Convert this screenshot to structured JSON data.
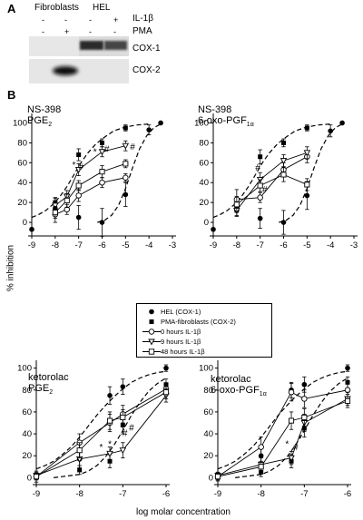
{
  "panel_a": {
    "letter": "A",
    "groups": [
      "Fibroblasts",
      "HEL"
    ],
    "treatments": [
      {
        "name": "IL-1β",
        "signs": [
          "-",
          "-",
          "-",
          "+"
        ]
      },
      {
        "name": "PMA",
        "signs": [
          "-",
          "+",
          "-",
          "-"
        ]
      }
    ],
    "bands": [
      "COX-1",
      "COX-2"
    ]
  },
  "panel_b": {
    "letter": "B",
    "y_axis_label": "% inhibition",
    "x_axis_label": "log molar concentration",
    "legend": [
      {
        "symbol": "filled-circle",
        "label": "HEL (COX-1)"
      },
      {
        "symbol": "filled-square",
        "label": "PMA-fibroblasts (COX-2)"
      },
      {
        "symbol": "open-circle",
        "label": "0 hours IL-1β"
      },
      {
        "symbol": "open-triangle-down",
        "label": "9 hours IL-1β"
      },
      {
        "symbol": "open-square",
        "label": "48 hours IL-1β"
      }
    ]
  },
  "chart_data": [
    {
      "type": "scatter",
      "title_line1": "NS-398",
      "title_line2_main": "PGE",
      "title_line2_sub": "2",
      "xlim": [
        -9,
        -3
      ],
      "ylim": [
        -10,
        105
      ],
      "xticks": [
        "-9",
        "-8",
        "-7",
        "-6",
        "-5",
        "-4",
        "-3"
      ],
      "yticks": [
        "0",
        "20",
        "40",
        "60",
        "80",
        "100"
      ],
      "fit_curves": [
        {
          "series": "HEL (COX-1)",
          "x": [
            -6.2,
            -5.9,
            -5.6,
            -5.3,
            -5.0,
            -4.7,
            -4.4,
            -4.1,
            -3.8,
            -3.5
          ],
          "y": [
            0,
            2,
            7,
            17,
            34,
            55,
            74,
            87,
            95,
            99
          ]
        },
        {
          "series": "PMA-fibroblasts (COX-2)",
          "x": [
            -9,
            -8.7,
            -8.4,
            -8.1,
            -7.8,
            -7.5,
            -7.2,
            -6.9,
            -6.6,
            -6.3,
            -6.0,
            -5.5,
            -5.0,
            -4.5,
            -4.0
          ],
          "y": [
            5,
            8,
            12,
            18,
            26,
            36,
            48,
            60,
            70,
            78,
            84,
            92,
            96,
            98,
            99
          ]
        }
      ],
      "series": [
        {
          "name": "HEL (COX-1)",
          "x": [
            -9,
            -8,
            -7,
            -6,
            -5,
            -4,
            -3.5
          ],
          "y": [
            -7,
            14,
            5,
            0,
            28,
            93,
            100
          ],
          "err": [
            0,
            5,
            12,
            14,
            12,
            5,
            0
          ]
        },
        {
          "name": "PMA-fibroblasts (COX-2)",
          "x": [
            -8,
            -7,
            -6,
            -5
          ],
          "y": [
            20,
            68,
            80,
            95
          ],
          "err": [
            5,
            6,
            4,
            3
          ]
        },
        {
          "name": "0 hours IL-1β",
          "x": [
            -8,
            -7.5,
            -7,
            -6,
            -5
          ],
          "y": [
            8,
            13,
            27,
            40,
            45
          ],
          "err": [
            8,
            5,
            6,
            5,
            4
          ]
        },
        {
          "name": "9 hours IL-1β",
          "x": [
            -8,
            -7.5,
            -7,
            -6,
            -5
          ],
          "y": [
            17,
            26,
            53,
            71,
            77
          ],
          "err": [
            7,
            6,
            6,
            5,
            5
          ]
        },
        {
          "name": "48 hours IL-1β",
          "x": [
            -8,
            -7.5,
            -7,
            -6,
            -5
          ],
          "y": [
            10,
            22,
            37,
            51,
            59
          ],
          "err": [
            6,
            7,
            5,
            6,
            4
          ]
        }
      ],
      "annotations": [
        {
          "text": "*",
          "x": -7.2,
          "y": 55
        },
        {
          "text": "#",
          "x": -6.9,
          "y": 53
        },
        {
          "text": "*",
          "x": -6.3,
          "y": 68
        },
        {
          "text": "#",
          "x": -5.8,
          "y": 71
        },
        {
          "text": "#",
          "x": -4.7,
          "y": 73
        }
      ]
    },
    {
      "type": "scatter",
      "title_line1": "NS-398",
      "title_line2_main": "6-oxo-PGF",
      "title_line2_sub": "1α",
      "xlim": [
        -9,
        -3
      ],
      "ylim": [
        -10,
        105
      ],
      "xticks": [
        "-9",
        "-8",
        "-7",
        "-6",
        "-5",
        "-4",
        "-3"
      ],
      "yticks": [
        "0",
        "20",
        "40",
        "60",
        "80",
        "100"
      ],
      "fit_curves": [
        {
          "series": "HEL (COX-1)",
          "x": [
            -6.2,
            -5.9,
            -5.6,
            -5.3,
            -5.0,
            -4.7,
            -4.4,
            -4.1,
            -3.8,
            -3.5
          ],
          "y": [
            0,
            2,
            7,
            17,
            34,
            55,
            74,
            87,
            95,
            99
          ]
        },
        {
          "series": "PMA-fibroblasts (COX-2)",
          "x": [
            -9,
            -8.7,
            -8.4,
            -8.1,
            -7.8,
            -7.5,
            -7.2,
            -6.9,
            -6.6,
            -6.3,
            -6.0,
            -5.5,
            -5.0,
            -4.5,
            -4.0
          ],
          "y": [
            5,
            8,
            12,
            18,
            26,
            36,
            48,
            60,
            70,
            78,
            84,
            92,
            96,
            98,
            99
          ]
        }
      ],
      "series": [
        {
          "name": "HEL (COX-1)",
          "x": [
            -9,
            -8,
            -7,
            -6,
            -5,
            -4,
            -3.5
          ],
          "y": [
            -7,
            12,
            4,
            0,
            27,
            92,
            100
          ],
          "err": [
            0,
            5,
            10,
            12,
            14,
            6,
            0
          ]
        },
        {
          "name": "PMA-fibroblasts (COX-2)",
          "x": [
            -8,
            -7,
            -6,
            -5
          ],
          "y": [
            15,
            66,
            80,
            95
          ],
          "err": [
            5,
            7,
            4,
            3
          ]
        },
        {
          "name": "0 hours IL-1β",
          "x": [
            -8,
            -7,
            -6,
            -5
          ],
          "y": [
            23,
            25,
            53,
            66
          ],
          "err": [
            10,
            5,
            7,
            6
          ]
        },
        {
          "name": "9 hours IL-1β",
          "x": [
            -8,
            -7,
            -6,
            -5
          ],
          "y": [
            12,
            43,
            62,
            70
          ],
          "err": [
            6,
            7,
            6,
            6
          ]
        },
        {
          "name": "48 hours IL-1β",
          "x": [
            -8,
            -7,
            -6,
            -5
          ],
          "y": [
            18,
            37,
            48,
            38
          ],
          "err": [
            8,
            6,
            7,
            6
          ]
        }
      ],
      "annotations": [
        {
          "text": "#",
          "x": -7.1,
          "y": 52
        },
        {
          "text": "*",
          "x": -6.9,
          "y": 40
        },
        {
          "text": "#",
          "x": -6.8,
          "y": 30
        }
      ]
    },
    {
      "type": "scatter",
      "title_line1": "ketorolac",
      "title_line2_main": "PGE",
      "title_line2_sub": "2",
      "xlim": [
        -9,
        -6
      ],
      "ylim": [
        -3,
        103
      ],
      "xticks": [
        "-9",
        "-8",
        "-7",
        "-6"
      ],
      "yticks": [
        "0",
        "20",
        "40",
        "60",
        "80",
        "100"
      ],
      "fit_curves": [
        {
          "series": "HEL (COX-1)",
          "x": [
            -9,
            -8.8,
            -8.6,
            -8.4,
            -8.2,
            -8.0,
            -7.8,
            -7.6,
            -7.4,
            -7.2,
            -7.0,
            -6.8,
            -6.6,
            -6.4,
            -6.2,
            -6.0
          ],
          "y": [
            8,
            11,
            15,
            21,
            28,
            37,
            47,
            57,
            66,
            74,
            81,
            87,
            91,
            94,
            96,
            97
          ]
        },
        {
          "series": "PMA-fibroblasts (COX-2)",
          "x": [
            -8.6,
            -8.4,
            -8.2,
            -8.0,
            -7.8,
            -7.6,
            -7.4,
            -7.2,
            -7.0,
            -6.8,
            -6.6,
            -6.4,
            -6.2,
            -6.0
          ],
          "y": [
            0,
            1,
            2,
            3,
            6,
            11,
            19,
            30,
            43,
            57,
            69,
            79,
            86,
            91
          ]
        }
      ],
      "series": [
        {
          "name": "HEL (COX-1)",
          "x": [
            -9,
            -8,
            -7.3,
            -7,
            -6
          ],
          "y": [
            1,
            17,
            75,
            83,
            100
          ],
          "err": [
            3,
            8,
            8,
            7,
            3
          ]
        },
        {
          "name": "PMA-fibroblasts (COX-2)",
          "x": [
            -9,
            -8,
            -7.3,
            -7,
            -6
          ],
          "y": [
            1,
            7,
            15,
            48,
            85
          ],
          "err": [
            2,
            4,
            6,
            8,
            5
          ]
        },
        {
          "name": "0 hours IL-1β",
          "x": [
            -9,
            -8,
            -7.3,
            -7,
            -6
          ],
          "y": [
            1,
            32,
            50,
            58,
            81
          ],
          "err": [
            5,
            8,
            8,
            8,
            5
          ]
        },
        {
          "name": "9 hours IL-1β",
          "x": [
            -9,
            -8,
            -7.3,
            -7,
            -6
          ],
          "y": [
            2,
            17,
            22,
            25,
            75
          ],
          "err": [
            3,
            6,
            6,
            7,
            6
          ]
        },
        {
          "name": "48 hours IL-1β",
          "x": [
            -9,
            -8,
            -7.3,
            -7,
            -6
          ],
          "y": [
            1,
            25,
            52,
            55,
            78
          ],
          "err": [
            3,
            7,
            8,
            7,
            6
          ]
        }
      ],
      "annotations": [
        {
          "text": "*",
          "x": -7.5,
          "y": 25
        },
        {
          "text": "*",
          "x": -7.3,
          "y": 28
        },
        {
          "text": "#",
          "x": -6.95,
          "y": 38
        },
        {
          "text": "#",
          "x": -6.8,
          "y": 43
        }
      ]
    },
    {
      "type": "scatter",
      "title_line1": "ketorolac",
      "title_line2_main": "6-oxo-PGF",
      "title_line2_sub": "1α",
      "xlim": [
        -9,
        -6
      ],
      "ylim": [
        -3,
        103
      ],
      "xticks": [
        "-9",
        "-8",
        "-7",
        "-6"
      ],
      "yticks": [
        "0",
        "20",
        "40",
        "60",
        "80",
        "100"
      ],
      "fit_curves": [
        {
          "series": "HEL (COX-1)",
          "x": [
            -9,
            -8.8,
            -8.6,
            -8.4,
            -8.2,
            -8.0,
            -7.8,
            -7.6,
            -7.4,
            -7.2,
            -7.0,
            -6.8,
            -6.6,
            -6.4,
            -6.2,
            -6.0
          ],
          "y": [
            8,
            11,
            15,
            21,
            28,
            37,
            47,
            57,
            66,
            74,
            81,
            87,
            91,
            94,
            96,
            97
          ]
        },
        {
          "series": "PMA-fibroblasts (COX-2)",
          "x": [
            -8.6,
            -8.4,
            -8.2,
            -8.0,
            -7.8,
            -7.6,
            -7.4,
            -7.2,
            -7.0,
            -6.8,
            -6.6,
            -6.4,
            -6.2,
            -6.0
          ],
          "y": [
            0,
            1,
            2,
            3,
            6,
            11,
            19,
            30,
            43,
            57,
            69,
            79,
            86,
            91
          ]
        }
      ],
      "series": [
        {
          "name": "HEL (COX-1)",
          "x": [
            -9,
            -8,
            -7.3,
            -7,
            -6
          ],
          "y": [
            1,
            20,
            80,
            85,
            100
          ],
          "err": [
            3,
            8,
            7,
            7,
            3
          ]
        },
        {
          "name": "PMA-fibroblasts (COX-2)",
          "x": [
            -9,
            -8,
            -7.3,
            -7,
            -6
          ],
          "y": [
            1,
            5,
            15,
            45,
            87
          ],
          "err": [
            2,
            4,
            6,
            8,
            5
          ]
        },
        {
          "name": "0 hours IL-1β",
          "x": [
            -9,
            -8,
            -7.3,
            -7,
            -6
          ],
          "y": [
            1,
            28,
            78,
            72,
            80
          ],
          "err": [
            4,
            9,
            8,
            8,
            6
          ]
        },
        {
          "name": "9 hours IL-1β",
          "x": [
            -9,
            -8,
            -7.3,
            -7,
            -6
          ],
          "y": [
            2,
            12,
            18,
            50,
            72
          ],
          "err": [
            3,
            6,
            6,
            8,
            6
          ]
        },
        {
          "name": "48 hours IL-1β",
          "x": [
            -9,
            -8,
            -7.3,
            -7,
            -6
          ],
          "y": [
            1,
            10,
            52,
            55,
            70
          ],
          "err": [
            3,
            5,
            8,
            8,
            6
          ]
        }
      ],
      "annotations": [
        {
          "text": "*",
          "x": -7.4,
          "y": 28
        },
        {
          "text": "#",
          "x": -7.2,
          "y": 25
        },
        {
          "text": "*",
          "x": -7.1,
          "y": 33
        }
      ]
    }
  ]
}
